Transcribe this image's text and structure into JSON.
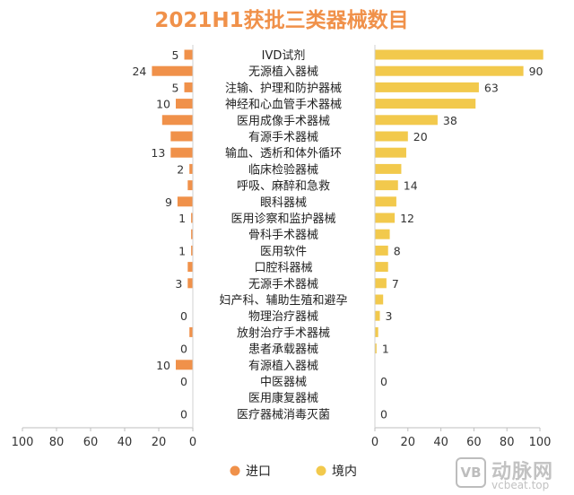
{
  "chart_data": {
    "type": "bar",
    "title": "2021H1获批三类器械数目",
    "categories": [
      "IVD试剂",
      "无源植入器械",
      "注输、护理和防护器械",
      "神经和心血管手术器械",
      "医用成像手术器械",
      "有源手术器械",
      "输血、透析和体外循环",
      "临床检验器械",
      "呼吸、麻醉和急救",
      "眼科器械",
      "医用诊察和监护器械",
      "骨科手术器械",
      "医用软件",
      "口腔科器械",
      "无源手术器械",
      "妇产科、辅助生殖和避孕",
      "物理治疗器械",
      "放射治疗手术器械",
      "患者承载器械",
      "有源植入器械",
      "中医器械",
      "医用康复器械",
      "医疗器械消毒灭菌"
    ],
    "series": [
      {
        "name": "进口",
        "color": "#f0914a",
        "values": [
          5,
          24,
          5,
          10,
          18,
          13,
          13,
          2,
          3,
          9,
          1,
          1,
          1,
          3,
          3,
          0,
          0,
          2,
          0,
          10,
          0,
          0,
          0
        ],
        "labels": [
          "5",
          "24",
          "5",
          "10",
          "",
          "",
          "13",
          "2",
          "",
          "9",
          "1",
          "",
          "1",
          "",
          "3",
          "",
          "0",
          "",
          "0",
          "10",
          "0",
          "",
          "0"
        ]
      },
      {
        "name": "境内",
        "color": "#f2c94c",
        "values": [
          102,
          90,
          63,
          61,
          38,
          20,
          19,
          16,
          14,
          13,
          12,
          9,
          8,
          8,
          7,
          5,
          3,
          2,
          1,
          0,
          0,
          0,
          0
        ],
        "labels": [
          "",
          "90",
          "63",
          "",
          "38",
          "20",
          "",
          "",
          "14",
          "",
          "12",
          "",
          "8",
          "",
          "7",
          "",
          "3",
          "",
          "1",
          "",
          "0",
          "",
          "0"
        ]
      }
    ],
    "left_axis": {
      "ticks": [
        "100",
        "80",
        "60",
        "40",
        "20",
        "0"
      ],
      "xlim": [
        0,
        100
      ]
    },
    "right_axis": {
      "ticks": [
        "0",
        "20",
        "40",
        "60",
        "80",
        "100"
      ],
      "xlim": [
        0,
        100
      ]
    },
    "legend": [
      {
        "label": "进口",
        "color": "#f0914a"
      },
      {
        "label": "境内",
        "color": "#f2c94c"
      }
    ],
    "legend_position": "bottom"
  },
  "watermark": {
    "badge": "VB",
    "name": "动脉网",
    "url": "vcbeat.top"
  }
}
